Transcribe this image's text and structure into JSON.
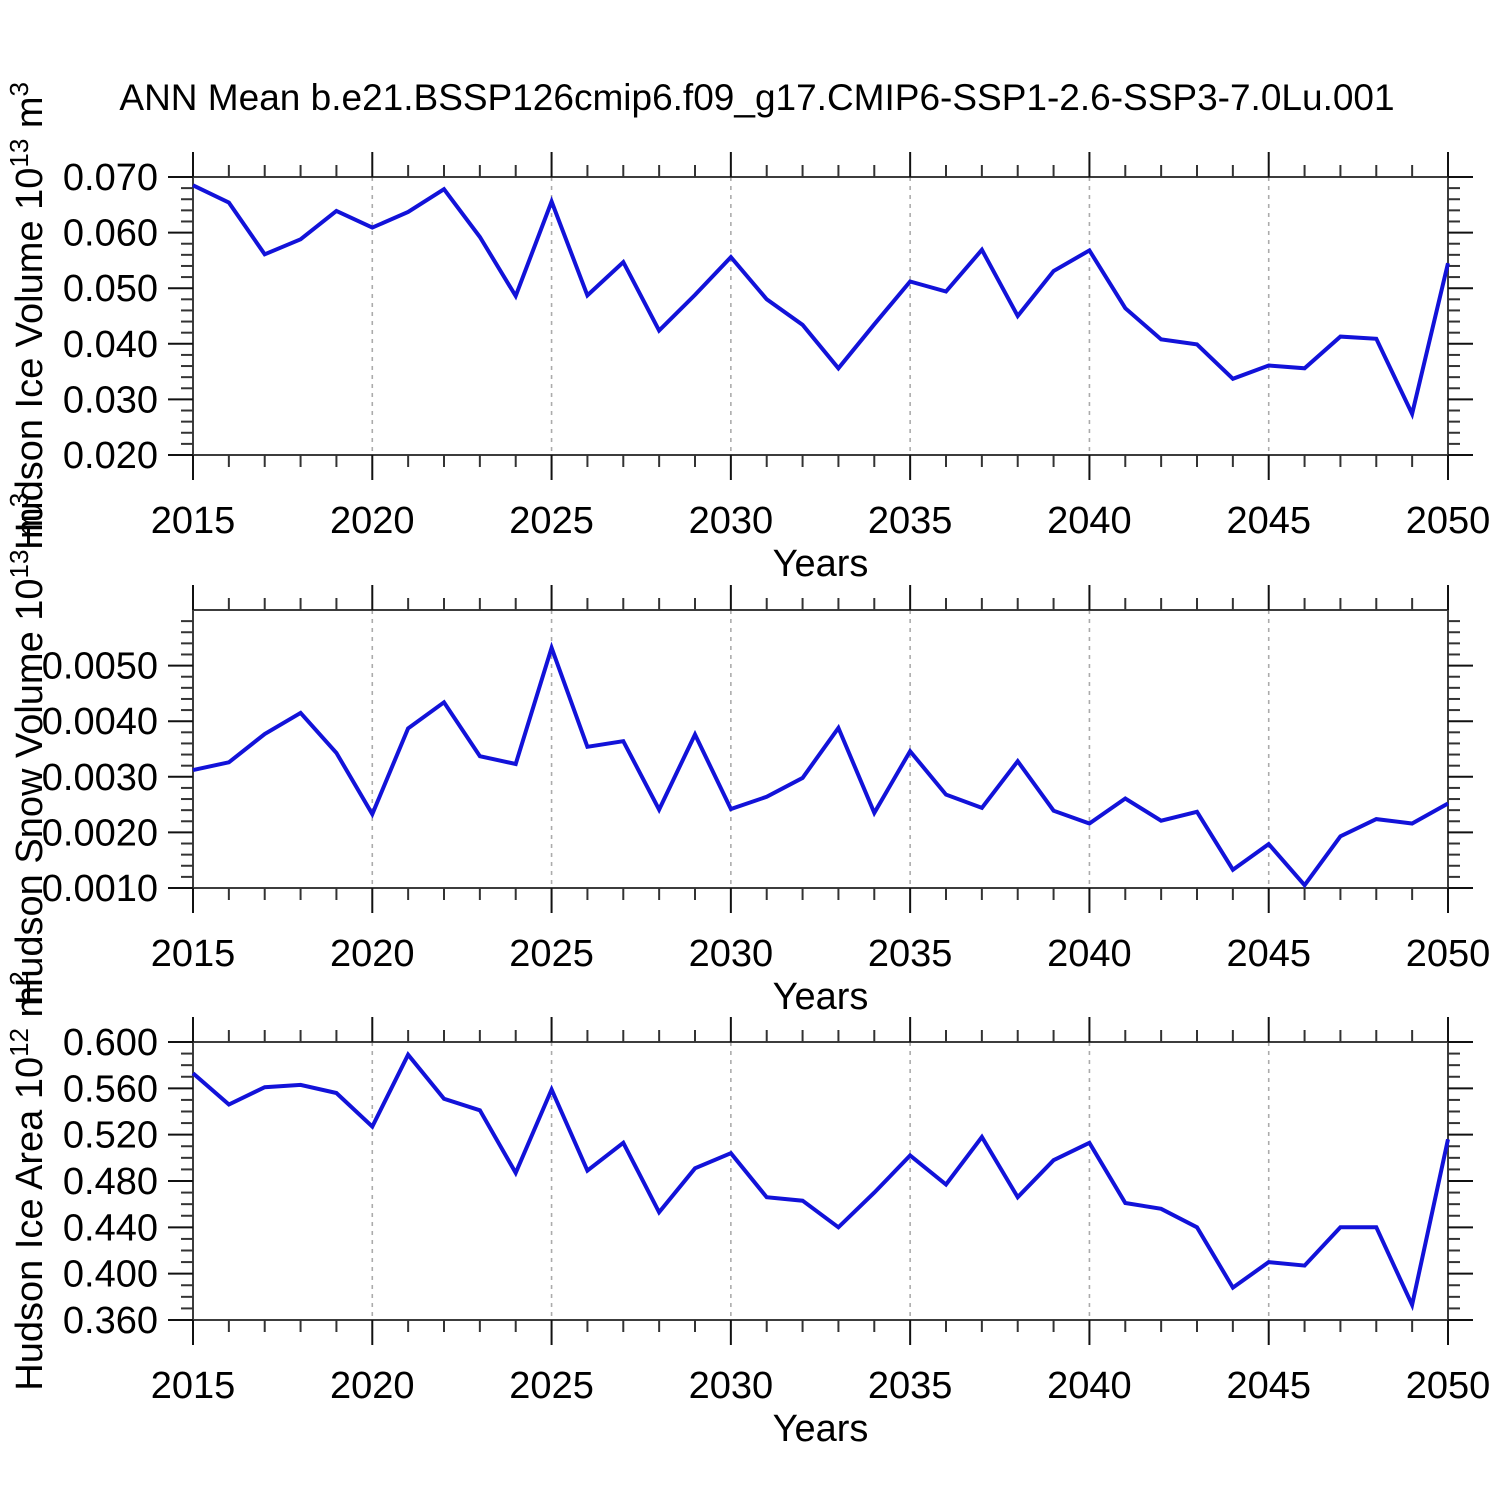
{
  "figure": {
    "background": "#ffffff"
  },
  "colors": {
    "series_line": "#1212d9",
    "grid": "#ababab",
    "frame": "#3c3c3c",
    "text": "#000000"
  },
  "chart_data": {
    "type": "line",
    "title": "ANN Mean b.e21.BSSP126cmip6.f09_g17.CMIP6-SSP1-2.6-SSP3-7.0Lu.001",
    "xlabel": "Years",
    "xlim": [
      2015,
      2050
    ],
    "x": [
      2015,
      2016,
      2017,
      2018,
      2019,
      2020,
      2021,
      2022,
      2023,
      2024,
      2025,
      2026,
      2027,
      2028,
      2029,
      2030,
      2031,
      2032,
      2033,
      2034,
      2035,
      2036,
      2037,
      2038,
      2039,
      2040,
      2041,
      2042,
      2043,
      2044,
      2045,
      2046,
      2047,
      2048,
      2049,
      2050
    ],
    "xticks": {
      "values": [
        2015,
        2020,
        2025,
        2030,
        2035,
        2040,
        2045,
        2050
      ],
      "labels": [
        "2015",
        "2020",
        "2025",
        "2030",
        "2035",
        "2040",
        "2045",
        "2050"
      ]
    },
    "x_minor_step": 1,
    "grid_years": [
      2020,
      2025,
      2030,
      2035,
      2040,
      2045
    ],
    "legend": "none",
    "grid_style": "vertical-dashed",
    "panels": [
      {
        "id": "hudson-ice-volume",
        "ylabel_text": "Hudson Ice Volume 10^13 m^3",
        "ylabel_parts": [
          {
            "text": "Hudson Ice Volume 10",
            "sup": false
          },
          {
            "text": "13",
            "sup": true
          },
          {
            "text": " m",
            "sup": false
          },
          {
            "text": "3",
            "sup": true
          }
        ],
        "ylim": [
          0.02,
          0.07
        ],
        "y_minor_step": 0.002,
        "yticks": {
          "values": [
            0.02,
            0.03,
            0.04,
            0.05,
            0.06,
            0.07
          ],
          "labels": [
            "0.020",
            "0.030",
            "0.040",
            "0.050",
            "0.060",
            "0.070"
          ]
        },
        "values": [
          0.0685,
          0.0654,
          0.0561,
          0.0588,
          0.0639,
          0.0609,
          0.0637,
          0.0678,
          0.0592,
          0.0486,
          0.0656,
          0.0487,
          0.0547,
          0.0424,
          0.0488,
          0.0556,
          0.048,
          0.0434,
          0.0356,
          0.0435,
          0.0512,
          0.0494,
          0.0569,
          0.045,
          0.0531,
          0.0568,
          0.0464,
          0.0408,
          0.0399,
          0.0337,
          0.0361,
          0.0356,
          0.0413,
          0.0409,
          0.0274,
          0.0545
        ]
      },
      {
        "id": "hudson-snow-volume",
        "ylabel_text": "Hudson Snow Volume 10^13 m^3",
        "ylabel_parts": [
          {
            "text": "Hudson Snow Volume 10",
            "sup": false
          },
          {
            "text": "13",
            "sup": true
          },
          {
            "text": " m",
            "sup": false
          },
          {
            "text": "3",
            "sup": true
          }
        ],
        "ylim": [
          0.001,
          0.006
        ],
        "y_minor_step": 0.0002,
        "yticks": {
          "values": [
            0.001,
            0.002,
            0.003,
            0.004,
            0.005
          ],
          "labels": [
            "0.0010",
            "0.0020",
            "0.0030",
            "0.0040",
            "0.0050"
          ]
        },
        "values": [
          0.00312,
          0.00326,
          0.00377,
          0.00415,
          0.00343,
          0.00233,
          0.00387,
          0.00434,
          0.00337,
          0.00323,
          0.00532,
          0.00354,
          0.00364,
          0.00241,
          0.00376,
          0.00242,
          0.00264,
          0.00298,
          0.00388,
          0.00235,
          0.00346,
          0.00268,
          0.00244,
          0.00328,
          0.00239,
          0.00216,
          0.00261,
          0.00221,
          0.00237,
          0.00133,
          0.00179,
          0.00105,
          0.00193,
          0.00224,
          0.00216,
          0.00252
        ]
      },
      {
        "id": "hudson-ice-area",
        "ylabel_text": "Hudson Ice Area 10^12 m^2",
        "ylabel_parts": [
          {
            "text": "Hudson Ice Area 10",
            "sup": false
          },
          {
            "text": "12",
            "sup": true
          },
          {
            "text": " m",
            "sup": false
          },
          {
            "text": "2",
            "sup": true
          }
        ],
        "ylim": [
          0.36,
          0.6
        ],
        "y_minor_step": 0.01,
        "yticks": {
          "values": [
            0.36,
            0.4,
            0.44,
            0.48,
            0.52,
            0.56,
            0.6
          ],
          "labels": [
            "0.360",
            "0.400",
            "0.440",
            "0.480",
            "0.520",
            "0.560",
            "0.600"
          ]
        },
        "values": [
          0.573,
          0.546,
          0.561,
          0.563,
          0.556,
          0.527,
          0.589,
          0.551,
          0.541,
          0.487,
          0.559,
          0.489,
          0.513,
          0.453,
          0.491,
          0.504,
          0.466,
          0.463,
          0.44,
          0.47,
          0.502,
          0.477,
          0.518,
          0.466,
          0.498,
          0.513,
          0.461,
          0.456,
          0.44,
          0.388,
          0.41,
          0.407,
          0.44,
          0.44,
          0.373,
          0.516
        ]
      }
    ]
  }
}
